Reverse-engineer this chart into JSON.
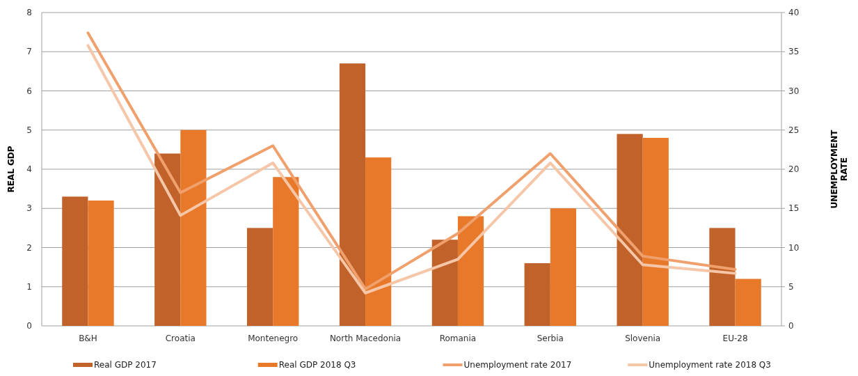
{
  "chart_data": {
    "type": "bar",
    "ylabel": "REAL GDP",
    "y2label": "UNEMPLOYMENT RATE",
    "categories": [
      "B&H",
      "Croatia",
      "Montenegro",
      "North Macedonia",
      "Romania",
      "Serbia",
      "Slovenia",
      "EU-28"
    ],
    "series": [
      {
        "name": "Real GDP 2017",
        "color": "#c0622a",
        "values": [
          3.3,
          4.4,
          2.5,
          6.7,
          2.2,
          1.6,
          4.9,
          2.5
        ]
      },
      {
        "name": "Real GDP 2018 Q3",
        "color": "#e8792a",
        "values": [
          3.2,
          5.0,
          3.8,
          4.3,
          2.8,
          3.0,
          4.8,
          1.2
        ]
      },
      {
        "name": "Unemployment rate 2017",
        "type": "line",
        "axis": "y2",
        "color": "#f0a06c",
        "values": [
          37.4,
          17,
          23,
          4.7,
          11.8,
          22,
          8.9,
          7.2
        ]
      },
      {
        "name": "Unemployment rate 2018 Q3",
        "type": "line",
        "axis": "y2",
        "color": "#f6c6a8",
        "values": [
          35.8,
          14.1,
          20.8,
          4.2,
          8.5,
          20.8,
          7.8,
          6.7
        ]
      }
    ],
    "ylim": [
      0,
      8
    ],
    "yticks": [
      0,
      1,
      2,
      3,
      4,
      5,
      6,
      7,
      8
    ],
    "y2lim": [
      0,
      40
    ],
    "y2ticks": [
      0,
      5,
      10,
      15,
      20,
      25,
      30,
      35,
      40
    ],
    "grid": "y",
    "legend": "bottom",
    "line_style": "solid",
    "marker": "none"
  }
}
